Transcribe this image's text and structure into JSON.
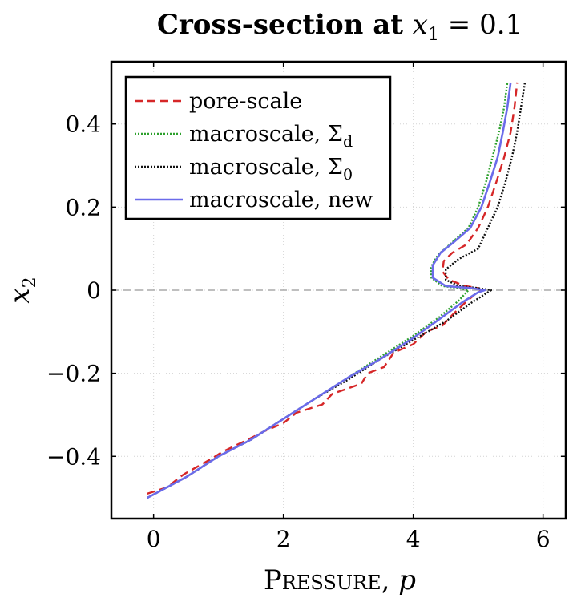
{
  "chart_data": {
    "type": "line",
    "title": "Cross-section at x₁ = 0.1",
    "title_parts": {
      "prefix": "Cross-section at ",
      "var": "x",
      "sub": "1",
      "suffix": " = 0.1"
    },
    "xlabel": "Pressure, p",
    "xlabel_parts": {
      "word": "Pressure,",
      "var": "p"
    },
    "ylabel": "x₂",
    "ylabel_parts": {
      "var": "x",
      "sub": "2"
    },
    "xlim": [
      -0.65,
      6.35
    ],
    "ylim": [
      -0.55,
      0.55
    ],
    "xticks": [
      0,
      2,
      4,
      6
    ],
    "xtick_labels": [
      "0",
      "2",
      "4",
      "6"
    ],
    "yticks": [
      -0.4,
      -0.2,
      0,
      0.2,
      0.4
    ],
    "ytick_labels": [
      "−0.4",
      "−0.2",
      "0",
      "0.2",
      "0.4"
    ],
    "grid": true,
    "reference_line_y": 0,
    "legend_position": "top-left",
    "series": [
      {
        "name": "pore-scale",
        "label_parts": {
          "text": "pore-scale"
        },
        "color": "#d62728",
        "dash": "10,6",
        "points": [
          [
            -0.1,
            -0.49
          ],
          [
            0.2,
            -0.475
          ],
          [
            0.45,
            -0.445
          ],
          [
            0.5,
            -0.44
          ],
          [
            0.9,
            -0.405
          ],
          [
            1.05,
            -0.39
          ],
          [
            1.45,
            -0.36
          ],
          [
            1.7,
            -0.34
          ],
          [
            2.0,
            -0.32
          ],
          [
            2.2,
            -0.295
          ],
          [
            2.6,
            -0.275
          ],
          [
            2.75,
            -0.25
          ],
          [
            3.2,
            -0.225
          ],
          [
            3.3,
            -0.2
          ],
          [
            3.55,
            -0.185
          ],
          [
            3.7,
            -0.15
          ],
          [
            4.0,
            -0.13
          ],
          [
            4.2,
            -0.1
          ],
          [
            4.45,
            -0.085
          ],
          [
            4.6,
            -0.06
          ],
          [
            4.8,
            -0.03
          ],
          [
            4.95,
            -0.01
          ],
          [
            5.05,
            0.0
          ],
          [
            5.0,
            0.005
          ],
          [
            4.8,
            0.01
          ],
          [
            4.55,
            0.025
          ],
          [
            4.45,
            0.045
          ],
          [
            4.47,
            0.07
          ],
          [
            4.6,
            0.09
          ],
          [
            4.82,
            0.11
          ],
          [
            5.0,
            0.15
          ],
          [
            5.15,
            0.2
          ],
          [
            5.28,
            0.26
          ],
          [
            5.4,
            0.32
          ],
          [
            5.5,
            0.38
          ],
          [
            5.56,
            0.44
          ],
          [
            5.6,
            0.5
          ]
        ]
      },
      {
        "name": "macroscale, Σd",
        "label_parts": {
          "text": "macroscale, ",
          "sym": "Σ",
          "sub": "d"
        },
        "color": "#2ca02c",
        "dash": "2,2",
        "points": [
          [
            -0.1,
            -0.5
          ],
          [
            0.5,
            -0.45
          ],
          [
            1.0,
            -0.4
          ],
          [
            1.5,
            -0.36
          ],
          [
            2.0,
            -0.31
          ],
          [
            2.5,
            -0.26
          ],
          [
            3.0,
            -0.21
          ],
          [
            3.5,
            -0.16
          ],
          [
            4.0,
            -0.11
          ],
          [
            4.4,
            -0.065
          ],
          [
            4.7,
            -0.025
          ],
          [
            4.85,
            0.0
          ],
          [
            4.7,
            0.005
          ],
          [
            4.45,
            0.01
          ],
          [
            4.28,
            0.03
          ],
          [
            4.27,
            0.055
          ],
          [
            4.38,
            0.085
          ],
          [
            4.6,
            0.115
          ],
          [
            4.85,
            0.15
          ],
          [
            5.0,
            0.2
          ],
          [
            5.12,
            0.26
          ],
          [
            5.22,
            0.32
          ],
          [
            5.32,
            0.38
          ],
          [
            5.4,
            0.44
          ],
          [
            5.45,
            0.5
          ]
        ]
      },
      {
        "name": "macroscale, Σ0",
        "label_parts": {
          "text": "macroscale, ",
          "sym": "Σ",
          "sub": "0"
        },
        "color": "#111111",
        "dash": "2,2",
        "points": [
          [
            -0.1,
            -0.5
          ],
          [
            0.5,
            -0.45
          ],
          [
            1.0,
            -0.4
          ],
          [
            1.5,
            -0.36
          ],
          [
            2.0,
            -0.31
          ],
          [
            2.5,
            -0.26
          ],
          [
            3.0,
            -0.215
          ],
          [
            3.5,
            -0.165
          ],
          [
            4.0,
            -0.12
          ],
          [
            4.5,
            -0.075
          ],
          [
            4.9,
            -0.03
          ],
          [
            5.15,
            -0.005
          ],
          [
            5.2,
            0.0
          ],
          [
            5.0,
            0.005
          ],
          [
            4.7,
            0.01
          ],
          [
            4.5,
            0.025
          ],
          [
            4.5,
            0.05
          ],
          [
            4.7,
            0.075
          ],
          [
            5.0,
            0.1
          ],
          [
            5.15,
            0.15
          ],
          [
            5.3,
            0.2
          ],
          [
            5.42,
            0.26
          ],
          [
            5.52,
            0.32
          ],
          [
            5.6,
            0.38
          ],
          [
            5.66,
            0.44
          ],
          [
            5.72,
            0.5
          ]
        ]
      },
      {
        "name": "macroscale, new",
        "label_parts": {
          "text": "macroscale, new"
        },
        "color": "#6b6bea",
        "dash": "",
        "points": [
          [
            -0.1,
            -0.5
          ],
          [
            0.5,
            -0.45
          ],
          [
            1.0,
            -0.4
          ],
          [
            1.5,
            -0.36
          ],
          [
            2.0,
            -0.31
          ],
          [
            2.5,
            -0.26
          ],
          [
            3.0,
            -0.21
          ],
          [
            3.5,
            -0.165
          ],
          [
            4.0,
            -0.115
          ],
          [
            4.4,
            -0.07
          ],
          [
            4.75,
            -0.03
          ],
          [
            5.0,
            -0.005
          ],
          [
            5.1,
            0.0
          ],
          [
            4.9,
            0.005
          ],
          [
            4.5,
            0.01
          ],
          [
            4.3,
            0.03
          ],
          [
            4.3,
            0.06
          ],
          [
            4.42,
            0.09
          ],
          [
            4.62,
            0.115
          ],
          [
            4.88,
            0.15
          ],
          [
            5.05,
            0.2
          ],
          [
            5.18,
            0.26
          ],
          [
            5.3,
            0.32
          ],
          [
            5.38,
            0.38
          ],
          [
            5.45,
            0.44
          ],
          [
            5.5,
            0.5
          ]
        ]
      }
    ]
  }
}
